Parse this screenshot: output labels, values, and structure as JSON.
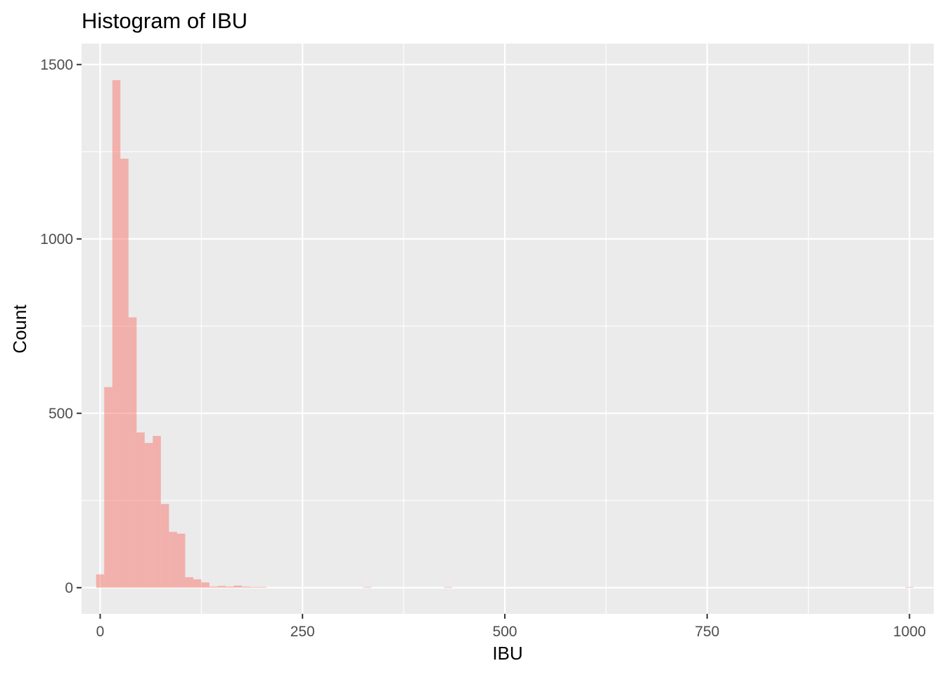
{
  "chart_data": {
    "type": "bar",
    "subtype": "histogram",
    "title": "Histogram of IBU",
    "xlabel": "IBU",
    "ylabel": "Count",
    "xlim": [
      -23,
      1030
    ],
    "ylim": [
      -75,
      1560
    ],
    "x_ticks": [
      0,
      250,
      500,
      750,
      1000
    ],
    "x_tick_labels": [
      "0",
      "250",
      "500",
      "750",
      "1000"
    ],
    "y_ticks": [
      0,
      500,
      1000,
      1500
    ],
    "y_tick_labels": [
      "0",
      "500",
      "1000",
      "1500"
    ],
    "x_minor_gridlines": [
      125,
      375,
      625,
      875
    ],
    "y_minor_gridlines": [
      250,
      750,
      1250
    ],
    "grid": true,
    "legend": "none",
    "bin_width": 10,
    "bins": [
      {
        "x0": -5,
        "x1": 5,
        "count": 38
      },
      {
        "x0": 5,
        "x1": 15,
        "count": 575
      },
      {
        "x0": 15,
        "x1": 25,
        "count": 1455
      },
      {
        "x0": 25,
        "x1": 35,
        "count": 1230
      },
      {
        "x0": 35,
        "x1": 45,
        "count": 775
      },
      {
        "x0": 45,
        "x1": 55,
        "count": 445
      },
      {
        "x0": 55,
        "x1": 65,
        "count": 415
      },
      {
        "x0": 65,
        "x1": 75,
        "count": 435
      },
      {
        "x0": 75,
        "x1": 85,
        "count": 240
      },
      {
        "x0": 85,
        "x1": 95,
        "count": 160
      },
      {
        "x0": 95,
        "x1": 105,
        "count": 155
      },
      {
        "x0": 105,
        "x1": 115,
        "count": 30
      },
      {
        "x0": 115,
        "x1": 125,
        "count": 24
      },
      {
        "x0": 125,
        "x1": 135,
        "count": 15
      },
      {
        "x0": 135,
        "x1": 145,
        "count": 3
      },
      {
        "x0": 145,
        "x1": 155,
        "count": 5
      },
      {
        "x0": 155,
        "x1": 165,
        "count": 3
      },
      {
        "x0": 165,
        "x1": 175,
        "count": 6
      },
      {
        "x0": 175,
        "x1": 185,
        "count": 3
      },
      {
        "x0": 185,
        "x1": 195,
        "count": 2
      },
      {
        "x0": 195,
        "x1": 205,
        "count": 2
      },
      {
        "x0": 325,
        "x1": 335,
        "count": 2
      },
      {
        "x0": 425,
        "x1": 435,
        "count": 2
      },
      {
        "x0": 995,
        "x1": 1005,
        "count": 2
      }
    ],
    "colors": {
      "bar_fill": "#F8766D",
      "bar_opacity": 0.5,
      "panel_background": "#EBEBEB",
      "gridline": "#FFFFFF",
      "tick_label": "#4D4D4D",
      "tick_mark": "#333333",
      "text": "#000000"
    }
  }
}
